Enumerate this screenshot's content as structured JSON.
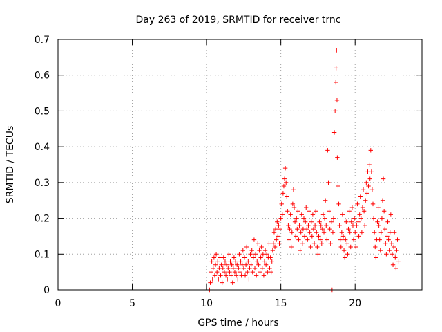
{
  "chart_data": {
    "type": "scatter",
    "title": "Day 263 of 2019, SRMTID for receiver trnc",
    "xlabel": "GPS time / hours",
    "ylabel": "SRMTID / TECUs",
    "xlim": [
      0,
      24.5
    ],
    "ylim": [
      0,
      0.7
    ],
    "xticks": [
      0,
      5,
      10,
      15,
      20
    ],
    "xtick_labels": [
      "0",
      "5",
      "10",
      "15",
      "20"
    ],
    "yticks": [
      0,
      0.1,
      0.2,
      0.3,
      0.4,
      0.5,
      0.6,
      0.7
    ],
    "ytick_labels": [
      "0",
      "0.1",
      "0.2",
      "0.3",
      "0.4",
      "0.5",
      "0.6",
      "0.7"
    ],
    "grid": true,
    "marker": "+",
    "color": "#ff0000",
    "series": [
      {
        "name": "SRMTID",
        "points": [
          [
            10.2,
            0.0
          ],
          [
            10.25,
            0.02
          ],
          [
            10.3,
            0.05
          ],
          [
            10.35,
            0.08
          ],
          [
            10.4,
            0.03
          ],
          [
            10.45,
            0.06
          ],
          [
            10.5,
            0.09
          ],
          [
            10.55,
            0.04
          ],
          [
            10.6,
            0.07
          ],
          [
            10.65,
            0.1
          ],
          [
            10.7,
            0.05
          ],
          [
            10.75,
            0.08
          ],
          [
            10.8,
            0.03
          ],
          [
            10.85,
            0.06
          ],
          [
            10.9,
            0.09
          ],
          [
            10.95,
            0.04
          ],
          [
            11.0,
            0.07
          ],
          [
            11.05,
            0.02
          ],
          [
            11.1,
            0.06
          ],
          [
            11.15,
            0.09
          ],
          [
            11.2,
            0.05
          ],
          [
            11.25,
            0.08
          ],
          [
            11.3,
            0.04
          ],
          [
            11.35,
            0.07
          ],
          [
            11.4,
            0.03
          ],
          [
            11.45,
            0.06
          ],
          [
            11.5,
            0.1
          ],
          [
            11.55,
            0.05
          ],
          [
            11.6,
            0.08
          ],
          [
            11.65,
            0.04
          ],
          [
            11.7,
            0.07
          ],
          [
            11.75,
            0.02
          ],
          [
            11.8,
            0.06
          ],
          [
            11.85,
            0.09
          ],
          [
            11.9,
            0.05
          ],
          [
            11.95,
            0.08
          ],
          [
            12.0,
            0.04
          ],
          [
            12.05,
            0.07
          ],
          [
            12.1,
            0.03
          ],
          [
            12.15,
            0.06
          ],
          [
            12.2,
            0.1
          ],
          [
            12.25,
            0.05
          ],
          [
            12.3,
            0.08
          ],
          [
            12.35,
            0.04
          ],
          [
            12.4,
            0.07
          ],
          [
            12.45,
            0.11
          ],
          [
            12.5,
            0.06
          ],
          [
            12.55,
            0.09
          ],
          [
            12.6,
            0.04
          ],
          [
            12.65,
            0.07
          ],
          [
            12.7,
            0.12
          ],
          [
            12.75,
            0.05
          ],
          [
            12.8,
            0.08
          ],
          [
            12.85,
            0.03
          ],
          [
            12.9,
            0.06
          ],
          [
            12.95,
            0.1
          ],
          [
            13.0,
            0.07
          ],
          [
            13.05,
            0.11
          ],
          [
            13.1,
            0.05
          ],
          [
            13.15,
            0.09
          ],
          [
            13.2,
            0.14
          ],
          [
            13.25,
            0.06
          ],
          [
            13.3,
            0.1
          ],
          [
            13.35,
            0.04
          ],
          [
            13.4,
            0.08
          ],
          [
            13.45,
            0.13
          ],
          [
            13.5,
            0.07
          ],
          [
            13.55,
            0.11
          ],
          [
            13.6,
            0.05
          ],
          [
            13.65,
            0.09
          ],
          [
            13.7,
            0.12
          ],
          [
            13.75,
            0.06
          ],
          [
            13.8,
            0.1
          ],
          [
            13.85,
            0.04
          ],
          [
            13.9,
            0.08
          ],
          [
            13.95,
            0.11
          ],
          [
            14.0,
            0.07
          ],
          [
            14.05,
            0.1
          ],
          [
            14.1,
            0.05
          ],
          [
            14.15,
            0.09
          ],
          [
            14.2,
            0.13
          ],
          [
            14.25,
            0.06
          ],
          [
            14.3,
            0.09
          ],
          [
            14.35,
            0.05
          ],
          [
            14.4,
            0.08
          ],
          [
            14.45,
            0.11
          ],
          [
            14.5,
            0.13
          ],
          [
            14.55,
            0.16
          ],
          [
            14.6,
            0.12
          ],
          [
            14.65,
            0.17
          ],
          [
            14.7,
            0.14
          ],
          [
            14.75,
            0.19
          ],
          [
            14.8,
            0.15
          ],
          [
            14.85,
            0.18
          ],
          [
            14.9,
            0.13
          ],
          [
            14.95,
            0.17
          ],
          [
            15.0,
            0.2
          ],
          [
            15.05,
            0.24
          ],
          [
            15.1,
            0.21
          ],
          [
            15.15,
            0.27
          ],
          [
            15.2,
            0.29
          ],
          [
            15.25,
            0.31
          ],
          [
            15.3,
            0.34
          ],
          [
            15.35,
            0.3
          ],
          [
            15.4,
            0.26
          ],
          [
            15.45,
            0.22
          ],
          [
            15.5,
            0.18
          ],
          [
            15.55,
            0.14
          ],
          [
            15.6,
            0.17
          ],
          [
            15.65,
            0.21
          ],
          [
            15.7,
            0.12
          ],
          [
            15.75,
            0.16
          ],
          [
            15.8,
            0.24
          ],
          [
            15.85,
            0.28
          ],
          [
            15.9,
            0.23
          ],
          [
            15.95,
            0.19
          ],
          [
            16.0,
            0.15
          ],
          [
            16.05,
            0.2
          ],
          [
            16.1,
            0.17
          ],
          [
            16.15,
            0.22
          ],
          [
            16.2,
            0.14
          ],
          [
            16.25,
            0.18
          ],
          [
            16.3,
            0.11
          ],
          [
            16.35,
            0.16
          ],
          [
            16.4,
            0.21
          ],
          [
            16.45,
            0.13
          ],
          [
            16.5,
            0.17
          ],
          [
            16.55,
            0.2
          ],
          [
            16.6,
            0.15
          ],
          [
            16.65,
            0.19
          ],
          [
            16.7,
            0.23
          ],
          [
            16.75,
            0.17
          ],
          [
            16.8,
            0.14
          ],
          [
            16.85,
            0.18
          ],
          [
            16.9,
            0.22
          ],
          [
            16.95,
            0.16
          ],
          [
            17.0,
            0.12
          ],
          [
            17.05,
            0.19
          ],
          [
            17.1,
            0.15
          ],
          [
            17.15,
            0.21
          ],
          [
            17.2,
            0.17
          ],
          [
            17.25,
            0.13
          ],
          [
            17.3,
            0.18
          ],
          [
            17.35,
            0.22
          ],
          [
            17.4,
            0.16
          ],
          [
            17.45,
            0.12
          ],
          [
            17.5,
            0.1
          ],
          [
            17.55,
            0.15
          ],
          [
            17.6,
            0.19
          ],
          [
            17.65,
            0.14
          ],
          [
            17.7,
            0.18
          ],
          [
            17.75,
            0.13
          ],
          [
            17.8,
            0.17
          ],
          [
            17.85,
            0.21
          ],
          [
            17.9,
            0.16
          ],
          [
            17.95,
            0.2
          ],
          [
            18.0,
            0.25
          ],
          [
            18.05,
            0.18
          ],
          [
            18.1,
            0.14
          ],
          [
            18.15,
            0.39
          ],
          [
            18.2,
            0.3
          ],
          [
            18.25,
            0.22
          ],
          [
            18.3,
            0.17
          ],
          [
            18.35,
            0.13
          ],
          [
            18.4,
            0.19
          ],
          [
            18.45,
            0.0
          ],
          [
            18.5,
            0.16
          ],
          [
            18.55,
            0.2
          ],
          [
            18.6,
            0.44
          ],
          [
            18.65,
            0.5
          ],
          [
            18.7,
            0.58
          ],
          [
            18.72,
            0.62
          ],
          [
            18.75,
            0.67
          ],
          [
            18.78,
            0.53
          ],
          [
            18.8,
            0.37
          ],
          [
            18.85,
            0.29
          ],
          [
            18.9,
            0.24
          ],
          [
            18.95,
            0.18
          ],
          [
            19.0,
            0.14
          ],
          [
            19.05,
            0.12
          ],
          [
            19.1,
            0.16
          ],
          [
            19.15,
            0.21
          ],
          [
            19.2,
            0.15
          ],
          [
            19.25,
            0.11
          ],
          [
            19.3,
            0.09
          ],
          [
            19.35,
            0.14
          ],
          [
            19.4,
            0.19
          ],
          [
            19.45,
            0.13
          ],
          [
            19.5,
            0.1
          ],
          [
            19.55,
            0.17
          ],
          [
            19.6,
            0.22
          ],
          [
            19.65,
            0.16
          ],
          [
            19.7,
            0.12
          ],
          [
            19.75,
            0.19
          ],
          [
            19.8,
            0.23
          ],
          [
            19.85,
            0.18
          ],
          [
            19.9,
            0.14
          ],
          [
            19.95,
            0.2
          ],
          [
            20.0,
            0.16
          ],
          [
            20.05,
            0.12
          ],
          [
            20.1,
            0.18
          ],
          [
            20.15,
            0.24
          ],
          [
            20.2,
            0.19
          ],
          [
            20.25,
            0.15
          ],
          [
            20.3,
            0.21
          ],
          [
            20.35,
            0.26
          ],
          [
            20.4,
            0.2
          ],
          [
            20.45,
            0.16
          ],
          [
            20.5,
            0.23
          ],
          [
            20.55,
            0.28
          ],
          [
            20.6,
            0.22
          ],
          [
            20.65,
            0.18
          ],
          [
            20.7,
            0.25
          ],
          [
            20.75,
            0.3
          ],
          [
            20.8,
            0.27
          ],
          [
            20.85,
            0.33
          ],
          [
            20.9,
            0.29
          ],
          [
            20.95,
            0.35
          ],
          [
            21.0,
            0.31
          ],
          [
            21.05,
            0.39
          ],
          [
            21.1,
            0.33
          ],
          [
            21.15,
            0.28
          ],
          [
            21.2,
            0.24
          ],
          [
            21.25,
            0.2
          ],
          [
            21.3,
            0.16
          ],
          [
            21.35,
            0.12
          ],
          [
            21.4,
            0.09
          ],
          [
            21.45,
            0.14
          ],
          [
            21.5,
            0.19
          ],
          [
            21.55,
            0.23
          ],
          [
            21.6,
            0.18
          ],
          [
            21.65,
            0.14
          ],
          [
            21.7,
            0.11
          ],
          [
            21.75,
            0.16
          ],
          [
            21.8,
            0.2
          ],
          [
            21.85,
            0.25
          ],
          [
            21.9,
            0.31
          ],
          [
            21.95,
            0.22
          ],
          [
            22.0,
            0.17
          ],
          [
            22.05,
            0.13
          ],
          [
            22.1,
            0.1
          ],
          [
            22.15,
            0.15
          ],
          [
            22.2,
            0.19
          ],
          [
            22.25,
            0.14
          ],
          [
            22.3,
            0.11
          ],
          [
            22.35,
            0.16
          ],
          [
            22.4,
            0.21
          ],
          [
            22.45,
            0.13
          ],
          [
            22.5,
            0.1
          ],
          [
            22.55,
            0.07
          ],
          [
            22.6,
            0.12
          ],
          [
            22.65,
            0.16
          ],
          [
            22.7,
            0.09
          ],
          [
            22.75,
            0.06
          ],
          [
            22.8,
            0.11
          ],
          [
            22.85,
            0.14
          ],
          [
            22.9,
            0.08
          ]
        ]
      }
    ]
  }
}
